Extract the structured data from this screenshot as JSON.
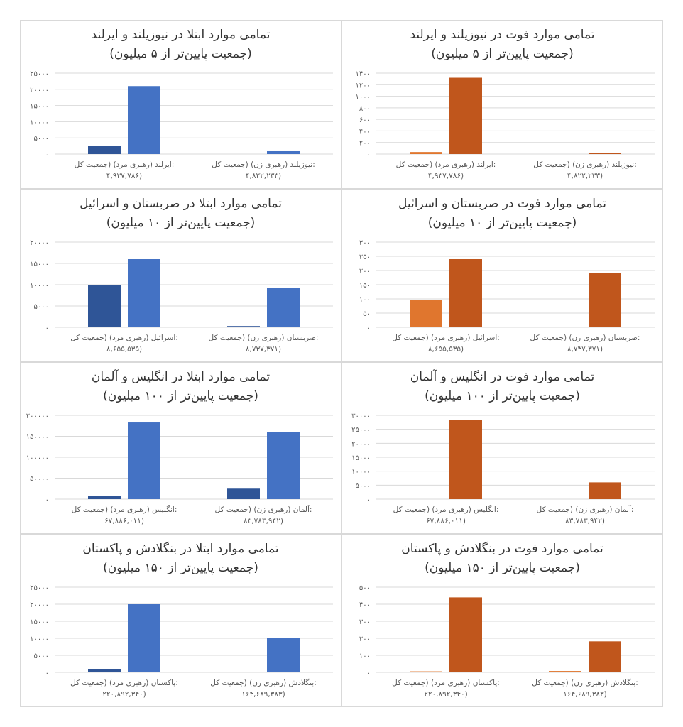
{
  "colors": {
    "blue_dark": "#2f5597",
    "blue": "#4472c4",
    "orange_light": "#e0762e",
    "orange": "#c0561c",
    "grid": "#d9d9d9",
    "axis_text": "#595959"
  },
  "chart_data": [
    {
      "id": "nz-ie-cases",
      "type": "bar",
      "title": "تمامی موارد ابتلا در نیوزیلند و ایرلند",
      "subtitle": "(جمعیت پایین‌تر از ۵ میلیون)",
      "ylim": [
        0,
        25000
      ],
      "yticks": [
        "۰",
        "۵۰۰۰",
        "۱۰۰۰۰",
        "۱۵۰۰۰",
        "۲۰۰۰۰",
        "۲۵۰۰۰"
      ],
      "grid": true,
      "categories": [
        {
          "line1": "ایرلند (رهبری مرد) (جمعیت کل:",
          "line2": "۴,۹۳۷,۷۸۶)"
        },
        {
          "line1": "نیوزیلند (رهبری زن) (جمعیت کل:",
          "line2": "۴,۸۲۲,۲۳۳)"
        }
      ],
      "bars": [
        [
          2500,
          21000
        ],
        [
          0,
          1100
        ]
      ],
      "palette": [
        "blue_dark",
        "blue"
      ]
    },
    {
      "id": "nz-ie-deaths",
      "type": "bar",
      "title": "تمامی موارد فوت در نیوزیلند و ایرلند",
      "subtitle": "(جمعیت پایین‌تر از ۵ میلیون)",
      "ylim": [
        0,
        1400
      ],
      "yticks": [
        "۰",
        "۲۰۰",
        "۴۰۰",
        "۶۰۰",
        "۸۰۰",
        "۱۰۰۰",
        "۱۲۰۰",
        "۱۴۰۰"
      ],
      "grid": true,
      "categories": [
        {
          "line1": "ایرلند (رهبری مرد) (جمعیت کل:",
          "line2": "۴,۹۳۷,۷۸۶)"
        },
        {
          "line1": "نیوزیلند (رهبری زن) (جمعیت کل:",
          "line2": "۴,۸۲۲,۲۳۳)"
        }
      ],
      "bars": [
        [
          35,
          1320
        ],
        [
          0,
          20
        ]
      ],
      "palette": [
        "orange_light",
        "orange"
      ]
    },
    {
      "id": "rs-il-cases",
      "type": "bar",
      "title": "تمامی موارد ابتلا در صربستان و اسرائیل",
      "subtitle": "(جمعیت پایین‌تر از ۱۰ میلیون)",
      "ylim": [
        0,
        20000
      ],
      "yticks": [
        "۰",
        "۵۰۰۰",
        "۱۰۰۰۰",
        "۱۵۰۰۰",
        "۲۰۰۰۰"
      ],
      "grid": true,
      "categories": [
        {
          "line1": "اسرائیل (رهبری مرد) (جمعیت کل:",
          "line2": "۸,۶۵۵,۵۳۵)"
        },
        {
          "line1": "صربستان (رهبری زن) (جمعیت کل:",
          "line2": "۸,۷۳۷,۳۷۱)"
        }
      ],
      "bars": [
        [
          10000,
          16000
        ],
        [
          300,
          9200
        ]
      ],
      "palette": [
        "blue_dark",
        "blue"
      ]
    },
    {
      "id": "rs-il-deaths",
      "type": "bar",
      "title": "تمامی موارد فوت در صربستان و اسرائیل",
      "subtitle": "(جمعیت پایین‌تر از ۱۰ میلیون)",
      "ylim": [
        0,
        300
      ],
      "yticks": [
        "۰",
        "۵۰",
        "۱۰۰",
        "۱۵۰",
        "۲۰۰",
        "۲۵۰",
        "۳۰۰"
      ],
      "grid": true,
      "categories": [
        {
          "line1": "اسرائیل (رهبری مرد) (جمعیت کل:",
          "line2": "۸,۶۵۵,۵۳۵)"
        },
        {
          "line1": "صربستان (رهبری زن) (جمعیت کل:",
          "line2": "۸,۷۳۷,۳۷۱)"
        }
      ],
      "bars": [
        [
          95,
          240
        ],
        [
          0,
          192
        ]
      ],
      "palette": [
        "orange_light",
        "orange"
      ]
    },
    {
      "id": "uk-de-cases",
      "type": "bar",
      "title": "تمامی موارد ابتلا در انگلیس و آلمان",
      "subtitle": "(جمعیت پایین‌تر از ۱۰۰ میلیون)",
      "ylim": [
        0,
        200000
      ],
      "yticks": [
        "۰",
        "۵۰۰۰۰",
        "۱۰۰۰۰۰",
        "۱۵۰۰۰۰",
        "۲۰۰۰۰۰"
      ],
      "grid": true,
      "categories": [
        {
          "line1": "انگلیس (رهبری مرد) (جمعیت کل:",
          "line2": "۶۷,۸۸۶,۰۱۱)"
        },
        {
          "line1": "آلمان (رهبری زن) (جمعیت کل:",
          "line2": "۸۳,۷۸۳,۹۴۲)"
        }
      ],
      "bars": [
        [
          8000,
          183000
        ],
        [
          25000,
          160000
        ]
      ],
      "palette": [
        "blue_dark",
        "blue"
      ]
    },
    {
      "id": "uk-de-deaths",
      "type": "bar",
      "title": "تمامی موارد فوت در انگلیس و آلمان",
      "subtitle": "(جمعیت پایین‌تر از ۱۰۰ میلیون)",
      "ylim": [
        0,
        30000
      ],
      "yticks": [
        "۰",
        "۵۰۰۰",
        "۱۰۰۰۰",
        "۱۵۰۰۰",
        "۲۰۰۰۰",
        "۲۵۰۰۰",
        "۳۰۰۰۰"
      ],
      "grid": true,
      "categories": [
        {
          "line1": "انگلیس (رهبری مرد) (جمعیت کل:",
          "line2": "۶۷,۸۸۶,۰۱۱)"
        },
        {
          "line1": "آلمان (رهبری زن) (جمعیت کل:",
          "line2": "۸۳,۷۸۳,۹۴۲)"
        }
      ],
      "bars": [
        [
          0,
          28300
        ],
        [
          0,
          6000
        ]
      ],
      "palette": [
        "orange_light",
        "orange"
      ]
    },
    {
      "id": "bd-pk-cases",
      "type": "bar",
      "title": "تمامی موارد ابتلا در بنگلادش و پاکستان",
      "subtitle": "(جمعیت پایین‌تر از ۱۵۰ میلیون)",
      "ylim": [
        0,
        25000
      ],
      "yticks": [
        "۰",
        "۵۰۰۰",
        "۱۰۰۰۰",
        "۱۵۰۰۰",
        "۲۰۰۰۰",
        "۲۵۰۰۰"
      ],
      "grid": true,
      "categories": [
        {
          "line1": "پاکستان (رهبری مرد) (جمعیت کل:",
          "line2": "۲۲۰,۸۹۲,۳۴۰)"
        },
        {
          "line1": "بنگلادش (رهبری زن) (جمعیت کل:",
          "line2": "۱۶۴,۶۸۹,۳۸۳)"
        }
      ],
      "bars": [
        [
          900,
          20000
        ],
        [
          0,
          10000
        ]
      ],
      "palette": [
        "blue_dark",
        "blue"
      ]
    },
    {
      "id": "bd-pk-deaths",
      "type": "bar",
      "title": "تمامی موارد فوت در بنگلادش و پاکستان",
      "subtitle": "(جمعیت پایین‌تر از ۱۵۰ میلیون)",
      "ylim": [
        0,
        500
      ],
      "yticks": [
        "۰",
        "۱۰۰",
        "۲۰۰",
        "۳۰۰",
        "۴۰۰",
        "۵۰۰"
      ],
      "grid": true,
      "categories": [
        {
          "line1": "پاکستان (رهبری مرد) (جمعیت کل:",
          "line2": "۲۲۰,۸۹۲,۳۴۰)"
        },
        {
          "line1": "بنگلادش (رهبری زن) (جمعیت کل:",
          "line2": "۱۶۴,۶۸۹,۳۸۳)"
        }
      ],
      "bars": [
        [
          6,
          440
        ],
        [
          8,
          182
        ]
      ],
      "palette": [
        "orange_light",
        "orange"
      ]
    }
  ]
}
